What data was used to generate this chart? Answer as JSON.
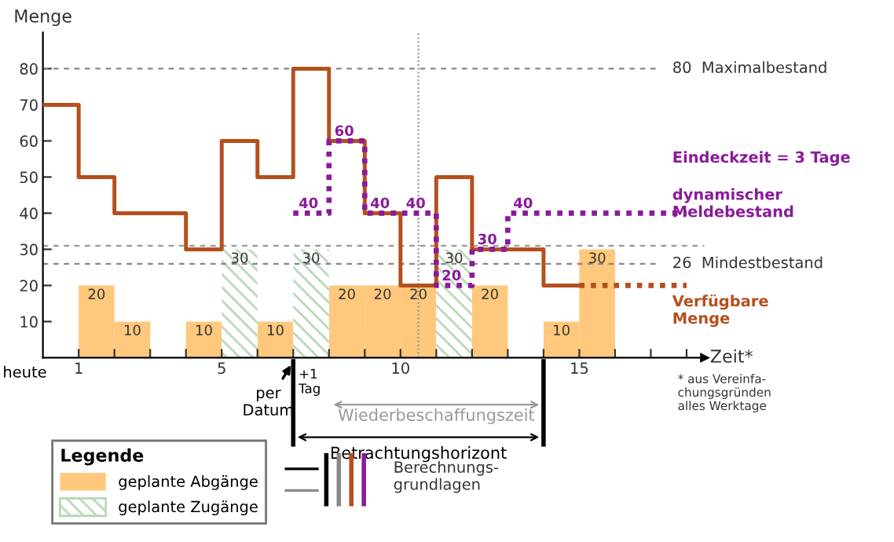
{
  "chart_data": {
    "type": "step",
    "xlabel": "Zeit*",
    "ylabel": "Menge",
    "xlim": [
      0,
      18.5
    ],
    "ylim": [
      0,
      90
    ],
    "xticks": [
      {
        "value": 1,
        "label": "1"
      },
      {
        "value": 2,
        "label": null
      },
      {
        "value": 3,
        "label": null
      },
      {
        "value": 4,
        "label": null
      },
      {
        "value": 5,
        "label": "5"
      },
      {
        "value": 6,
        "label": null
      },
      {
        "value": 7,
        "label": null
      },
      {
        "value": 8,
        "label": null
      },
      {
        "value": 9,
        "label": null
      },
      {
        "value": 10,
        "label": "10"
      },
      {
        "value": 11,
        "label": null
      },
      {
        "value": 12,
        "label": null
      },
      {
        "value": 13,
        "label": null
      },
      {
        "value": 14,
        "label": null
      },
      {
        "value": 15,
        "label": "15"
      },
      {
        "value": 16,
        "label": null
      },
      {
        "value": 17,
        "label": null
      },
      {
        "value": 18,
        "label": null
      }
    ],
    "yticks": [
      10,
      20,
      30,
      40,
      50,
      60,
      70,
      80
    ],
    "series": [
      {
        "name": "geplante Abgänge",
        "type": "bar",
        "color": "#ffc87c",
        "x": [
          1.5,
          2.5,
          4.5,
          6.5,
          8.5,
          9.5,
          10.5,
          12.5,
          14.5,
          15.5
        ],
        "values": [
          20,
          10,
          10,
          10,
          20,
          20,
          20,
          20,
          10,
          30
        ],
        "value_labels": [
          "20",
          "10",
          "10",
          "10",
          "20",
          "20",
          "20",
          "20",
          "10",
          "30"
        ]
      },
      {
        "name": "geplante Zugänge",
        "type": "bar",
        "color": "#b8d8b8",
        "x": [
          5.5,
          7.5,
          11.5
        ],
        "values": [
          30,
          30,
          30
        ],
        "value_labels": [
          "30",
          "30",
          "30"
        ]
      },
      {
        "name": "Verfügbare Menge",
        "color": "#b4501e",
        "x": [
          0,
          1,
          2,
          4,
          5,
          6,
          7,
          8,
          9,
          10,
          11,
          12,
          14,
          15
        ],
        "values": [
          70,
          50,
          40,
          30,
          60,
          50,
          80,
          60,
          40,
          20,
          50,
          30,
          20,
          20
        ]
      },
      {
        "type": "line",
        "color": "#b4501e",
        "line_style": "dotted",
        "x": [
          15,
          18
        ],
        "values": [
          20,
          20
        ]
      },
      {
        "name": "dynamischer Meldebestand",
        "color": "#8b1a9c",
        "line_style": "dotted",
        "x": [
          7,
          8,
          9,
          10,
          11,
          12,
          13,
          18
        ],
        "values": [
          40,
          60,
          40,
          40,
          20,
          30,
          40,
          40
        ],
        "value_labels": [
          "40",
          "60",
          "40",
          "40",
          "20",
          "30",
          "40",
          null
        ]
      }
    ],
    "ref_lines": [
      {
        "axis": "y",
        "value": 80,
        "label": "80  Maximalbestand",
        "color": "#888888",
        "line_style": "dashed"
      },
      {
        "axis": "y",
        "value": 26,
        "label": "26  Mindestbestand",
        "color": "#888888",
        "line_style": "dashed"
      },
      {
        "axis": "y",
        "value": 31,
        "label": null,
        "color": "#999999",
        "line_style": "dashed"
      },
      {
        "axis": "x",
        "value": 10.5,
        "label": null,
        "color": "#999999",
        "line_style": "dotted"
      }
    ],
    "annotations": [
      "heute",
      "Eindeckzeit = 3 Tage",
      "+1\nTag",
      "per\nDatum",
      "Wiederbeschaffungszeit",
      "Betrachtungshorizont",
      "* aus Vereinfa-\nchungsgründen\nalles Werktage",
      "Berechnungs-\ngrundlagen"
    ],
    "legend": "bottom left",
    "legend_title": "Legende",
    "grid": false
  }
}
